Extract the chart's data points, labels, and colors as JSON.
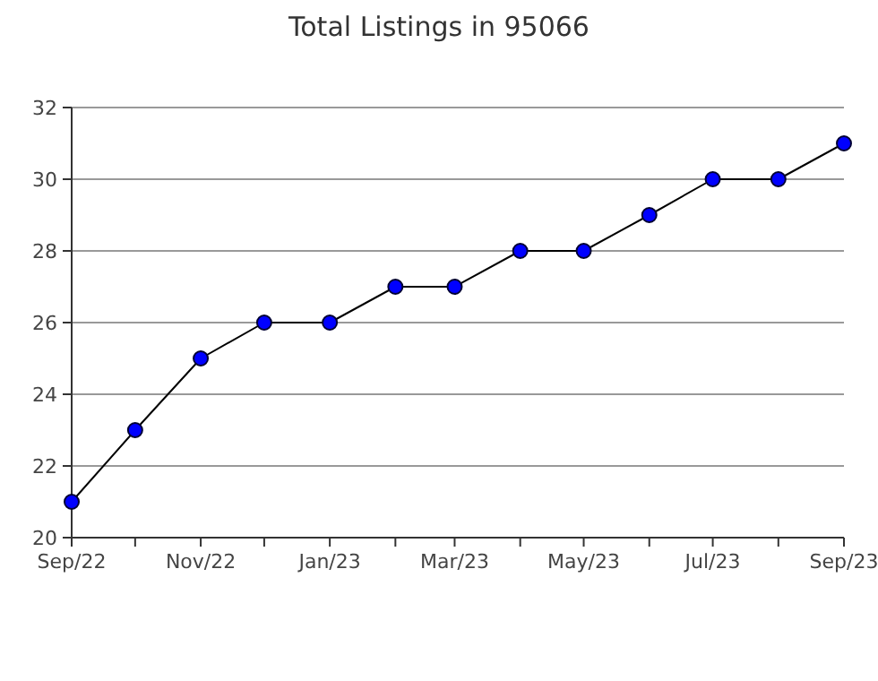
{
  "chart_data": {
    "type": "line",
    "title": "Total Listings in 95066",
    "x": [
      "2022-09",
      "2022-10",
      "2022-11",
      "2022-12",
      "2023-01",
      "2023-02",
      "2023-03",
      "2023-04",
      "2023-05",
      "2023-06",
      "2023-07",
      "2023-08",
      "2023-09"
    ],
    "series": [
      {
        "color": "#0000ff",
        "values": [
          21,
          23,
          25,
          26,
          26,
          27,
          27,
          28,
          28,
          29,
          30,
          30,
          31
        ]
      }
    ],
    "xlim": [
      "2022-09",
      "2023-09"
    ],
    "xticks": [
      {
        "value": "2022-09",
        "label": "Sep/22"
      },
      {
        "value": "2022-10",
        "label": null
      },
      {
        "value": "2022-11",
        "label": "Nov/22"
      },
      {
        "value": "2022-12",
        "label": null
      },
      {
        "value": "2023-01",
        "label": "Jan/23"
      },
      {
        "value": "2023-02",
        "label": null
      },
      {
        "value": "2023-03",
        "label": "Mar/23"
      },
      {
        "value": "2023-04",
        "label": null
      },
      {
        "value": "2023-05",
        "label": "May/23"
      },
      {
        "value": "2023-06",
        "label": null
      },
      {
        "value": "2023-07",
        "label": "Jul/23"
      },
      {
        "value": "2023-08",
        "label": null
      },
      {
        "value": "2023-09",
        "label": "Sep/23"
      }
    ],
    "ylim": [
      20,
      32
    ],
    "yticks": [
      20,
      22,
      24,
      26,
      28,
      30,
      32
    ],
    "grid": "y",
    "marker": "circle",
    "line_style": "solid"
  }
}
